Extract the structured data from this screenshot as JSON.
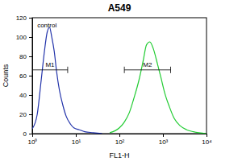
{
  "chart_data": {
    "type": "line",
    "title": "A549",
    "x_label": "FL1-H",
    "y_label": "Counts",
    "log": "x",
    "grid": false,
    "xlim": [
      1,
      10000
    ],
    "xticks": [
      {
        "value": 1,
        "label": "10⁰"
      },
      {
        "value": 10,
        "label": "10¹"
      },
      {
        "value": 100,
        "label": "10²"
      },
      {
        "value": 1000,
        "label": "10³"
      },
      {
        "value": 10000,
        "label": "10⁴"
      }
    ],
    "ylim": [
      0,
      120
    ],
    "yticks": [
      0,
      20,
      40,
      60,
      80,
      100,
      120
    ],
    "series": [
      {
        "color": "#2233aa",
        "x": [
          1,
          1.3,
          1.6,
          1.9,
          2.2,
          2.5,
          2.8,
          3.2,
          3.6,
          4.2,
          5,
          6,
          7.5,
          9,
          12,
          16,
          25,
          40
        ],
        "values": [
          5,
          20,
          55,
          85,
          105,
          110,
          100,
          85,
          65,
          45,
          30,
          18,
          10,
          6,
          4,
          2,
          1,
          0
        ]
      },
      {
        "color": "#22cc33",
        "x": [
          60,
          80,
          100,
          130,
          170,
          220,
          280,
          350,
          420,
          500,
          600,
          750,
          900,
          1100,
          1400,
          1800,
          2500,
          3500,
          5000,
          10000
        ],
        "values": [
          1,
          3,
          6,
          12,
          22,
          38,
          55,
          75,
          92,
          95,
          88,
          72,
          58,
          42,
          28,
          16,
          8,
          4,
          2,
          0
        ]
      }
    ],
    "annotations": [
      {
        "text": "control",
        "x": 1.3,
        "y": 110
      }
    ],
    "gates": [
      {
        "label": "M1",
        "start": 1,
        "end": 6.5,
        "y": 66
      },
      {
        "label": "M2",
        "start": 130,
        "end": 1500,
        "y": 66
      }
    ]
  }
}
